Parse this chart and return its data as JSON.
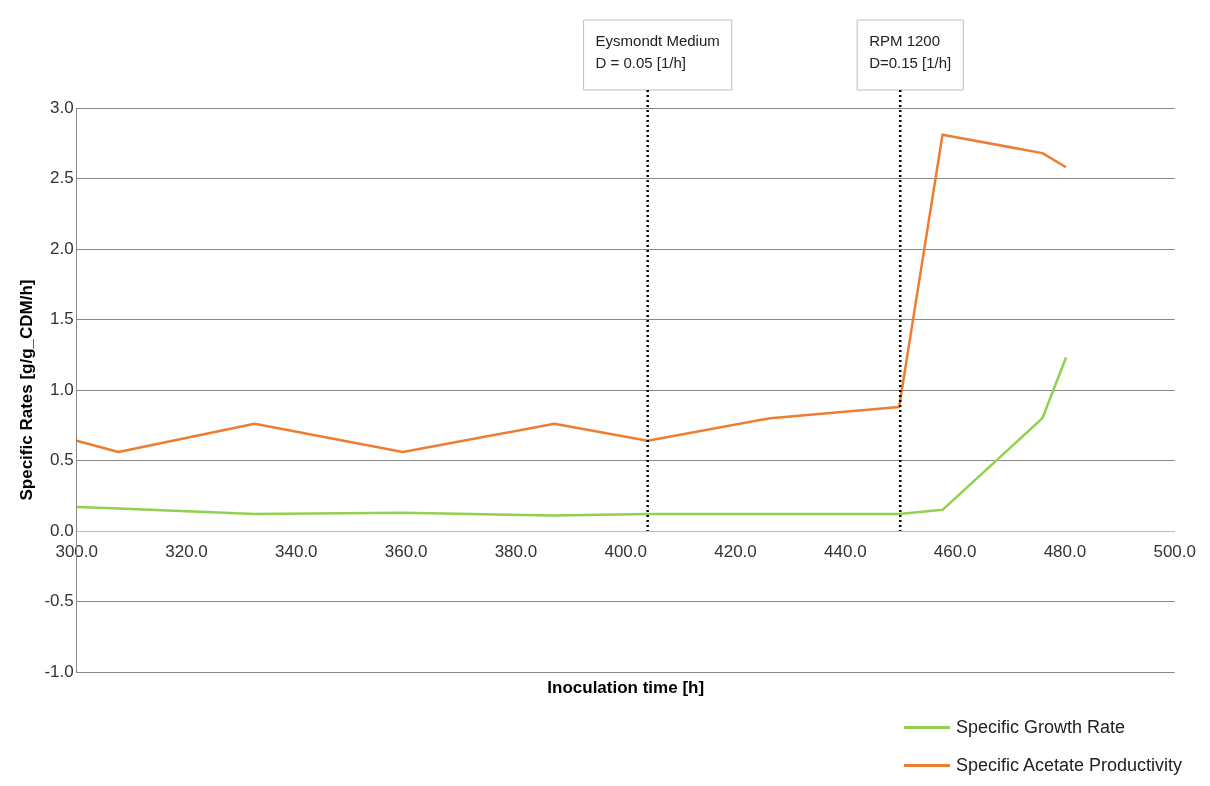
{
  "chart_data": {
    "type": "line",
    "xlabel": "Inoculation time [h]",
    "ylabel": "Specific Rates [g/g_CDM/h]",
    "xlim": [
      300,
      500
    ],
    "xticks": [
      {
        "value": 300,
        "label": "300.0"
      },
      {
        "value": 320,
        "label": "320.0"
      },
      {
        "value": 340,
        "label": "340.0"
      },
      {
        "value": 360,
        "label": "360.0"
      },
      {
        "value": 380,
        "label": "380.0"
      },
      {
        "value": 400,
        "label": "400.0"
      },
      {
        "value": 420,
        "label": "420.0"
      },
      {
        "value": 440,
        "label": "440.0"
      },
      {
        "value": 460,
        "label": "460.0"
      },
      {
        "value": 480,
        "label": "480.0"
      },
      {
        "value": 500,
        "label": "500.0"
      }
    ],
    "ylim": [
      -1,
      3
    ],
    "yticks": [
      {
        "value": -1,
        "label": "-1.0"
      },
      {
        "value": -0.5,
        "label": "-0.5"
      },
      {
        "value": 0,
        "label": "0.0"
      },
      {
        "value": 0.5,
        "label": "0.5"
      },
      {
        "value": 1,
        "label": "1.0"
      },
      {
        "value": 1.5,
        "label": "1.5"
      },
      {
        "value": 2,
        "label": "2.0"
      },
      {
        "value": 2.5,
        "label": "2.5"
      },
      {
        "value": 3,
        "label": "3.0"
      }
    ],
    "x": [
      300,
      307.6,
      332.4,
      359.4,
      387,
      404,
      426.3,
      449.8,
      457.7,
      475.9,
      480.2
    ],
    "series": [
      {
        "name": "Specific Growth Rate",
        "color": "#92d050",
        "values": [
          0.17,
          0.16,
          0.12,
          0.13,
          0.11,
          0.12,
          0.12,
          0.12,
          0.15,
          0.8,
          1.23
        ]
      },
      {
        "name": "Specific Acetate Productivity",
        "color": "#ed7d31",
        "values": [
          0.64,
          0.56,
          0.76,
          0.56,
          0.76,
          0.64,
          0.8,
          0.88,
          2.81,
          2.68,
          2.58
        ]
      }
    ],
    "ref_lines": [
      {
        "axis": "x",
        "value": 404,
        "color": "#000000",
        "line_style": "dotted"
      },
      {
        "axis": "x",
        "value": 450,
        "color": "#000000",
        "line_style": "dotted"
      }
    ],
    "annotations": [
      "Eysmondt Medium\nD = 0.05 [1/h]",
      "RPM 1200\nD=0.15 [1/h]"
    ],
    "grid": "y",
    "legend": "bottom right",
    "marker": "none",
    "line_style": "solid"
  }
}
